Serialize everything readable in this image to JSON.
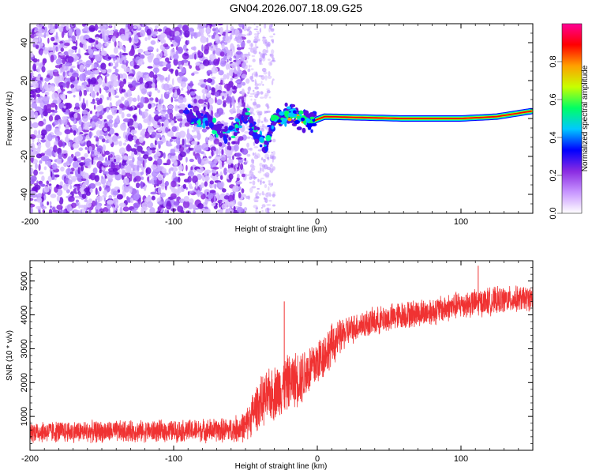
{
  "chart_data": [
    {
      "type": "heatmap",
      "title": "GN04.2026.007.18.09.G25",
      "xlabel": "Height of straight line (km)",
      "ylabel": "Frequency (Hz)",
      "xlim": [
        -200,
        150
      ],
      "ylim": [
        -50,
        50
      ],
      "xticks": [
        -200,
        -100,
        0,
        100
      ],
      "yticks": [
        -40,
        -20,
        0,
        20,
        40
      ],
      "colorbar": {
        "label": "Normalized spectral amplitude",
        "range": [
          0,
          1
        ],
        "ticks": [
          "0.0",
          "0.2",
          "0.4",
          "0.6",
          "0.8"
        ],
        "colormap": [
          "#ffffff",
          "#c896ff",
          "#8a2be2",
          "#0000ff",
          "#00c8ff",
          "#00ff64",
          "#c8ff00",
          "#ffa000",
          "#ff0000",
          "#ff0096"
        ]
      },
      "features": {
        "noise_region_x": [
          -200,
          -50
        ],
        "noise_sparse_x": [
          -50,
          -30
        ],
        "transition_track": [
          {
            "x": -90,
            "y": 2
          },
          {
            "x": -75,
            "y": -2
          },
          {
            "x": -62,
            "y": -10
          },
          {
            "x": -50,
            "y": 2
          },
          {
            "x": -42,
            "y": -8
          },
          {
            "x": -35,
            "y": -14
          },
          {
            "x": -30,
            "y": 0
          },
          {
            "x": -18,
            "y": 3
          },
          {
            "x": -5,
            "y": -2
          },
          {
            "x": 5,
            "y": 1
          },
          {
            "x": 60,
            "y": 0
          },
          {
            "x": 100,
            "y": 0
          },
          {
            "x": 125,
            "y": 1
          },
          {
            "x": 150,
            "y": 4
          }
        ]
      }
    },
    {
      "type": "line",
      "xlabel": "Height of straight line (km)",
      "ylabel": "SNR (10 * v/v)",
      "xlim": [
        -200,
        150
      ],
      "ylim": [
        0,
        5600
      ],
      "xticks": [
        -200,
        -100,
        0,
        100
      ],
      "yticks": [
        1000,
        2000,
        3000,
        4000,
        5000
      ],
      "color": "#f03232",
      "envelope": {
        "x": [
          -200,
          -150,
          -100,
          -60,
          -50,
          -45,
          -40,
          -30,
          -20,
          -10,
          0,
          10,
          20,
          30,
          40,
          60,
          80,
          100,
          120,
          150
        ],
        "mean": [
          550,
          550,
          570,
          600,
          700,
          1100,
          1400,
          1700,
          2000,
          2200,
          2600,
          3100,
          3500,
          3700,
          3800,
          4000,
          4100,
          4300,
          4400,
          4500
        ],
        "spread": [
          350,
          350,
          350,
          400,
          500,
          700,
          800,
          900,
          900,
          900,
          800,
          700,
          500,
          450,
          450,
          450,
          450,
          450,
          450,
          400
        ]
      },
      "spikes": [
        {
          "x": -23,
          "y": 4400
        },
        {
          "x": 112,
          "y": 5450
        }
      ]
    }
  ]
}
